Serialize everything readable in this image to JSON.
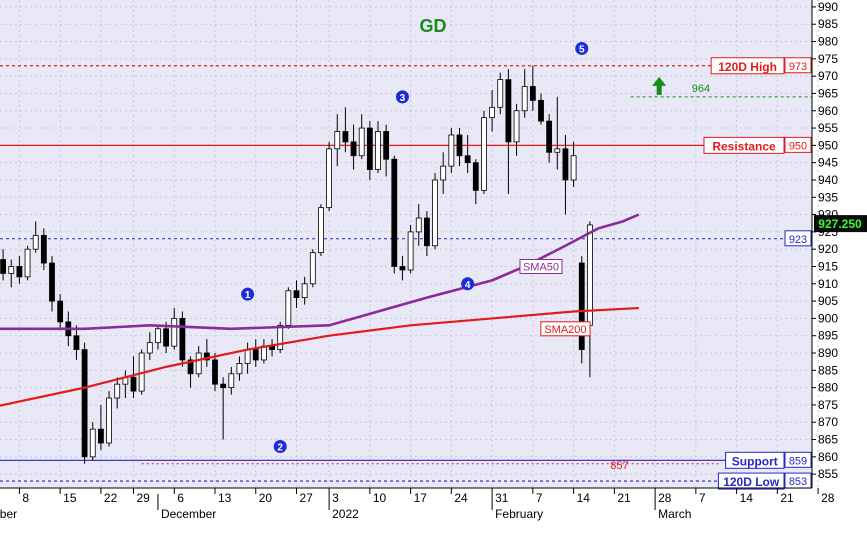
{
  "chart_data": {
    "type": "candlestick",
    "title": "GD",
    "ylim": [
      851,
      992
    ],
    "y_ticks": [
      855,
      860,
      865,
      870,
      875,
      880,
      885,
      890,
      895,
      900,
      905,
      910,
      915,
      920,
      925,
      930,
      935,
      940,
      945,
      950,
      955,
      960,
      965,
      970,
      975,
      980,
      985,
      990
    ],
    "y_tick_labels": [
      "855",
      "860",
      "865",
      "870",
      "875",
      "880",
      "885",
      "890",
      "895",
      "900",
      "905",
      "910",
      "915",
      "920",
      "925",
      "930",
      "935",
      "940",
      "945",
      "950",
      "955",
      "960",
      "965",
      "970",
      "975",
      "980",
      "985",
      "990"
    ],
    "x_tick_labels": [
      "8",
      "15",
      "22",
      "29",
      "6",
      "13",
      "20",
      "27",
      "3",
      "10",
      "17",
      "24",
      "31",
      "7",
      "14",
      "21",
      "28",
      "7",
      "14",
      "21",
      "28"
    ],
    "x_tick_day_index": [
      -4,
      1,
      6,
      10,
      15,
      20,
      25,
      30,
      34,
      39,
      44,
      49,
      54,
      59,
      64,
      69,
      74,
      79,
      84,
      89,
      94
    ],
    "month_labels": [
      {
        "label": "mber",
        "day_index": -8
      },
      {
        "label": "December",
        "day_index": 13
      },
      {
        "label": "2022",
        "day_index": 34
      },
      {
        "label": "February",
        "day_index": 54
      },
      {
        "label": "March",
        "day_index": 74
      }
    ],
    "grid": true,
    "candles": [
      {
        "o": 912,
        "h": 922,
        "l": 907,
        "c": 918
      },
      {
        "o": 918,
        "h": 923,
        "l": 914,
        "c": 916
      },
      {
        "o": 916,
        "h": 921,
        "l": 912,
        "c": 919
      },
      {
        "o": 919,
        "h": 924,
        "l": 915,
        "c": 917
      },
      {
        "o": 917,
        "h": 920,
        "l": 911,
        "c": 913
      },
      {
        "o": 913,
        "h": 917,
        "l": 909,
        "c": 915
      },
      {
        "o": 915,
        "h": 918,
        "l": 910,
        "c": 912
      },
      {
        "o": 912,
        "h": 921,
        "l": 911,
        "c": 920
      },
      {
        "o": 920,
        "h": 928,
        "l": 919,
        "c": 924
      },
      {
        "o": 924,
        "h": 926,
        "l": 914,
        "c": 916
      },
      {
        "o": 916,
        "h": 918,
        "l": 902,
        "c": 905
      },
      {
        "o": 905,
        "h": 907,
        "l": 897,
        "c": 899
      },
      {
        "o": 899,
        "h": 902,
        "l": 892,
        "c": 895
      },
      {
        "o": 895,
        "h": 898,
        "l": 888,
        "c": 891
      },
      {
        "o": 891,
        "h": 893,
        "l": 858,
        "c": 860
      },
      {
        "o": 860,
        "h": 870,
        "l": 859,
        "c": 868
      },
      {
        "o": 868,
        "h": 875,
        "l": 862,
        "c": 864
      },
      {
        "o": 864,
        "h": 879,
        "l": 863,
        "c": 877
      },
      {
        "o": 877,
        "h": 883,
        "l": 874,
        "c": 881
      },
      {
        "o": 881,
        "h": 885,
        "l": 877,
        "c": 883
      },
      {
        "o": 883,
        "h": 889,
        "l": 877,
        "c": 879
      },
      {
        "o": 879,
        "h": 891,
        "l": 878,
        "c": 890
      },
      {
        "o": 890,
        "h": 896,
        "l": 888,
        "c": 893
      },
      {
        "o": 893,
        "h": 898,
        "l": 891,
        "c": 897
      },
      {
        "o": 897,
        "h": 899,
        "l": 890,
        "c": 892
      },
      {
        "o": 892,
        "h": 903,
        "l": 891,
        "c": 900
      },
      {
        "o": 900,
        "h": 902,
        "l": 886,
        "c": 888
      },
      {
        "o": 888,
        "h": 889,
        "l": 880,
        "c": 884
      },
      {
        "o": 884,
        "h": 892,
        "l": 883,
        "c": 890
      },
      {
        "o": 890,
        "h": 894,
        "l": 886,
        "c": 888
      },
      {
        "o": 888,
        "h": 890,
        "l": 879,
        "c": 881
      },
      {
        "o": 881,
        "h": 883,
        "l": 865,
        "c": 880
      },
      {
        "o": 880,
        "h": 886,
        "l": 878,
        "c": 884
      },
      {
        "o": 884,
        "h": 889,
        "l": 882,
        "c": 887
      },
      {
        "o": 887,
        "h": 893,
        "l": 884,
        "c": 891
      },
      {
        "o": 891,
        "h": 894,
        "l": 886,
        "c": 888
      },
      {
        "o": 888,
        "h": 894,
        "l": 887,
        "c": 892
      },
      {
        "o": 892,
        "h": 894,
        "l": 889,
        "c": 891
      },
      {
        "o": 891,
        "h": 899,
        "l": 890,
        "c": 898
      },
      {
        "o": 898,
        "h": 909,
        "l": 897,
        "c": 908
      },
      {
        "o": 908,
        "h": 911,
        "l": 903,
        "c": 906
      },
      {
        "o": 906,
        "h": 912,
        "l": 904,
        "c": 910
      },
      {
        "o": 910,
        "h": 920,
        "l": 909,
        "c": 919
      },
      {
        "o": 919,
        "h": 933,
        "l": 918,
        "c": 932
      },
      {
        "o": 932,
        "h": 951,
        "l": 931,
        "c": 949
      },
      {
        "o": 949,
        "h": 959,
        "l": 944,
        "c": 954
      },
      {
        "o": 954,
        "h": 961,
        "l": 948,
        "c": 951
      },
      {
        "o": 951,
        "h": 956,
        "l": 943,
        "c": 947
      },
      {
        "o": 947,
        "h": 959,
        "l": 946,
        "c": 955
      },
      {
        "o": 955,
        "h": 957,
        "l": 940,
        "c": 943
      },
      {
        "o": 943,
        "h": 957,
        "l": 942,
        "c": 954
      },
      {
        "o": 954,
        "h": 956,
        "l": 941,
        "c": 946
      },
      {
        "o": 946,
        "h": 947,
        "l": 913,
        "c": 915
      },
      {
        "o": 915,
        "h": 918,
        "l": 911,
        "c": 914
      },
      {
        "o": 914,
        "h": 927,
        "l": 913,
        "c": 925
      },
      {
        "o": 925,
        "h": 933,
        "l": 921,
        "c": 929
      },
      {
        "o": 929,
        "h": 931,
        "l": 918,
        "c": 921
      },
      {
        "o": 921,
        "h": 942,
        "l": 920,
        "c": 940
      },
      {
        "o": 940,
        "h": 948,
        "l": 936,
        "c": 944
      },
      {
        "o": 944,
        "h": 955,
        "l": 942,
        "c": 953
      },
      {
        "o": 953,
        "h": 955,
        "l": 944,
        "c": 947
      },
      {
        "o": 947,
        "h": 953,
        "l": 942,
        "c": 945
      },
      {
        "o": 945,
        "h": 946,
        "l": 933,
        "c": 937
      },
      {
        "o": 937,
        "h": 960,
        "l": 936,
        "c": 958
      },
      {
        "o": 958,
        "h": 966,
        "l": 954,
        "c": 961
      },
      {
        "o": 961,
        "h": 971,
        "l": 959,
        "c": 969
      },
      {
        "o": 969,
        "h": 972,
        "l": 936,
        "c": 951
      },
      {
        "o": 951,
        "h": 962,
        "l": 947,
        "c": 960
      },
      {
        "o": 960,
        "h": 972,
        "l": 958,
        "c": 967
      },
      {
        "o": 967,
        "h": 973,
        "l": 960,
        "c": 963
      },
      {
        "o": 963,
        "h": 965,
        "l": 956,
        "c": 957
      },
      {
        "o": 957,
        "h": 959,
        "l": 945,
        "c": 948
      },
      {
        "o": 948,
        "h": 964,
        "l": 943,
        "c": 949
      },
      {
        "o": 949,
        "h": 953,
        "l": 930,
        "c": 940
      },
      {
        "o": 940,
        "h": 951,
        "l": 938,
        "c": 947
      },
      {
        "o": 916,
        "h": 918,
        "l": 887,
        "c": 891
      },
      {
        "o": 898,
        "h": 928,
        "l": 883,
        "c": 927
      }
    ],
    "series": [
      {
        "name": "SMA50",
        "color": "#8e2a98",
        "points": [
          [
            -10,
            897
          ],
          [
            4,
            897
          ],
          [
            12,
            898
          ],
          [
            22,
            897
          ],
          [
            34,
            898
          ],
          [
            40,
            902
          ],
          [
            46,
            906
          ],
          [
            54,
            911
          ],
          [
            58,
            915
          ],
          [
            63,
            921
          ],
          [
            67,
            926
          ],
          [
            70,
            928
          ],
          [
            72,
            930
          ]
        ]
      },
      {
        "name": "SMA200",
        "color": "#e21b1b",
        "points": [
          [
            -10,
            873
          ],
          [
            4,
            880
          ],
          [
            14,
            886
          ],
          [
            24,
            891
          ],
          [
            34,
            895
          ],
          [
            44,
            898
          ],
          [
            54,
            900
          ],
          [
            64,
            902
          ],
          [
            72,
            903
          ]
        ]
      }
    ],
    "hlines": [
      {
        "name": "120D High",
        "value": 973,
        "color": "#e21b1b",
        "style": "dotted",
        "price_label": "973"
      },
      {
        "name": "Resistance",
        "value": 950,
        "color": "#e21b1b",
        "style": "solid",
        "price_label": "950"
      },
      {
        "name": "Support",
        "value": 859,
        "color": "#2727c6",
        "style": "solid",
        "price_label": "859"
      },
      {
        "name": "120D Low",
        "value": 853,
        "color": "#2727c6",
        "style": "dotted",
        "price_label": "853"
      }
    ],
    "last_price": {
      "value": 927.25,
      "label": "927.250"
    },
    "ref_line": {
      "value": 923,
      "label": "923"
    },
    "target": {
      "value": 964,
      "label": "964"
    },
    "support_extension_label": "857",
    "waves": [
      {
        "label": "1",
        "day": 24,
        "value": 907
      },
      {
        "label": "2",
        "day": 28,
        "value": 863
      },
      {
        "label": "3",
        "day": 43,
        "value": 964
      },
      {
        "label": "4",
        "day": 51,
        "value": 910
      },
      {
        "label": "5",
        "day": 65,
        "value": 978
      }
    ],
    "annotations": [
      {
        "text": "SMA50",
        "day": 60,
        "value": 915
      },
      {
        "text": "SMA200",
        "day": 63,
        "value": 897
      }
    ]
  }
}
